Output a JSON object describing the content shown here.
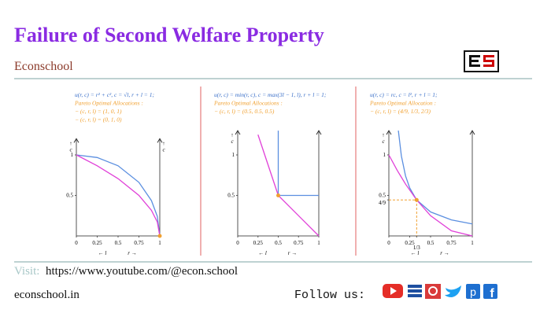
{
  "header": {
    "title": "Failure of Second Welfare Property",
    "subtitle": "Econschool"
  },
  "chart_data": [
    {
      "type": "line",
      "notes": [
        "u(r, c) = r² + c², c = √l, r + l = 1;",
        "Pareto Optimal Allocations :",
        "− (c, r, l) = (1, 0, 1)",
        "− (c, r, l) = (0, 1, 0)"
      ],
      "ylabel": "c",
      "y2label": "c",
      "xlabels": [
        "← l",
        "r →"
      ],
      "xlim": [
        0,
        1
      ],
      "ylim": [
        0,
        1.2
      ],
      "xticks": [
        0,
        0.25,
        0.5,
        0.75,
        1
      ],
      "yticks": [
        0.5,
        1
      ],
      "series": [
        {
          "color": "#5b8fe0",
          "x": [
            0,
            0.25,
            0.5,
            0.75,
            0.9,
            0.97,
            1
          ],
          "values": [
            1,
            0.968,
            0.866,
            0.661,
            0.436,
            0.243,
            0
          ]
        },
        {
          "color": "#e040d8",
          "x": [
            0,
            0.25,
            0.5,
            0.75,
            0.9,
            0.97,
            1
          ],
          "values": [
            1,
            0.866,
            0.707,
            0.5,
            0.316,
            0.173,
            0
          ]
        },
        {
          "color": "#f0a030",
          "marker": true,
          "x": [
            1
          ],
          "values": [
            0
          ]
        }
      ]
    },
    {
      "type": "line",
      "notes": [
        "u(r, c) = min(r, c), c = max(3l − 1, l), r + l = 1;",
        "Pareto Optimal Allocations :",
        "− (c, r, l) = (0.5, 0.5, 0.5)"
      ],
      "ylabel": "c",
      "xlabels": [
        "← l",
        "r →"
      ],
      "xlim": [
        0,
        1
      ],
      "ylim": [
        0,
        1.3
      ],
      "xticks": [
        0,
        0.25,
        0.5,
        0.75,
        1
      ],
      "yticks": [
        0.5,
        1
      ],
      "series": [
        {
          "color": "#5b8fe0",
          "x": [
            0.5,
            0.5,
            1
          ],
          "values": [
            1.3,
            0.5,
            0.5
          ]
        },
        {
          "color": "#e040d8",
          "x": [
            0.25,
            0.5,
            1
          ],
          "values": [
            1.25,
            0.5,
            0
          ]
        },
        {
          "color": "#f0a030",
          "marker": true,
          "x": [
            0.5
          ],
          "values": [
            0.5
          ]
        }
      ]
    },
    {
      "type": "line",
      "notes": [
        "u(r, c) = rc, c = l², r + l = 1;",
        "Pareto Optimal Allocation :",
        "− (c, r, l) = (4/9, 1/3, 2/3)"
      ],
      "ylabel": "c",
      "xlabels": [
        "← l",
        "r →"
      ],
      "xlim": [
        0,
        1
      ],
      "ylim": [
        0,
        1.3
      ],
      "xticks": [
        0,
        0.25,
        {
          "value": 0.3333,
          "label": "1/3"
        },
        0.5,
        0.75,
        1
      ],
      "yticks": [
        {
          "value": 0.4444,
          "label": "4/9"
        },
        0.5,
        1
      ],
      "series": [
        {
          "color": "#5b8fe0",
          "x": [
            0.114,
            0.15,
            0.2,
            0.25,
            0.3333,
            0.5,
            0.75,
            1
          ],
          "values": [
            1.3,
            0.988,
            0.741,
            0.593,
            0.444,
            0.296,
            0.198,
            0.148
          ]
        },
        {
          "color": "#e040d8",
          "x": [
            0,
            0.1,
            0.2,
            0.3333,
            0.5,
            0.75,
            1
          ],
          "values": [
            1,
            0.81,
            0.64,
            0.444,
            0.25,
            0.063,
            0
          ]
        },
        {
          "color": "#f0a030",
          "marker": true,
          "dashed": true,
          "x": [
            0.3333
          ],
          "values": [
            0.444
          ]
        }
      ]
    }
  ],
  "footer": {
    "visit": "Visit:",
    "url": "https://www.youtube.com/@econ.school",
    "site": "econschool.in",
    "follow": "Follow us:"
  }
}
